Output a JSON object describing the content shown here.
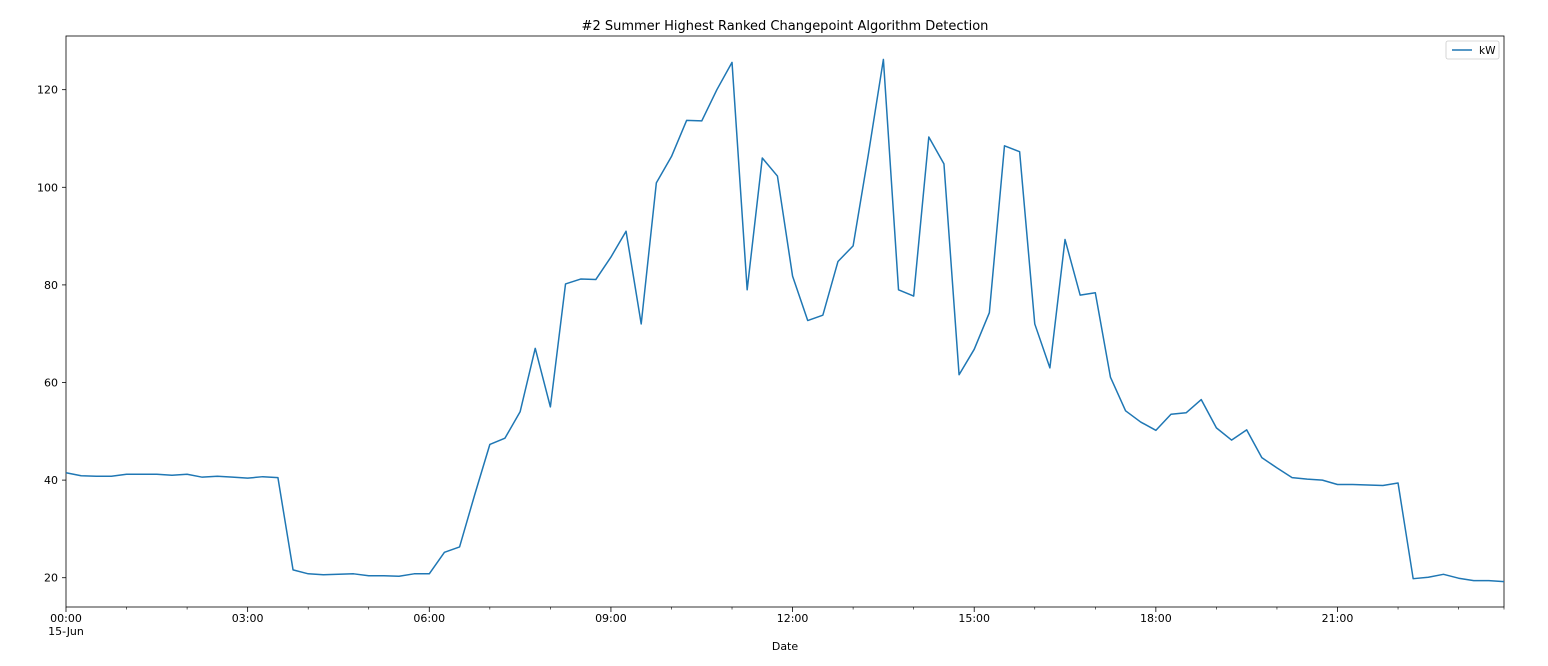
{
  "chart_data": {
    "type": "line",
    "title": "#2 Summer Highest Ranked Changepoint Algorithm Detection",
    "xlabel": "Date",
    "ylabel": "",
    "x_start": "00:00",
    "x_end": "23:45",
    "x_step_minutes": 15,
    "xlim": [
      "00:00",
      "23:45"
    ],
    "ylim": [
      14,
      131
    ],
    "x_ticks": [
      "00:00",
      "03:00",
      "06:00",
      "09:00",
      "12:00",
      "15:00",
      "18:00",
      "21:00"
    ],
    "x_tick_date": "15-Jun",
    "y_ticks": [
      20,
      40,
      60,
      80,
      100,
      120
    ],
    "legend_position": "top-right",
    "grid": false,
    "series": [
      {
        "name": "kW",
        "color": "#1f77b4",
        "values": [
          41.5,
          40.9,
          40.8,
          40.8,
          41.2,
          41.2,
          41.2,
          41.0,
          41.2,
          40.6,
          40.8,
          40.6,
          40.4,
          40.7,
          40.5,
          21.6,
          20.8,
          20.6,
          20.7,
          20.8,
          20.4,
          20.4,
          20.3,
          20.8,
          20.8,
          25.2,
          26.3,
          37.0,
          47.3,
          48.6,
          54.0,
          67.0,
          55.0,
          80.2,
          81.2,
          81.1,
          85.7,
          91.0,
          72.0,
          100.9,
          106.3,
          113.7,
          113.6,
          120.0,
          125.6,
          79.0,
          106.0,
          102.3,
          81.8,
          72.7,
          73.8,
          84.8,
          88.0,
          106.6,
          126.2,
          79.0,
          77.7,
          110.3,
          104.8,
          61.6,
          66.8,
          74.3,
          108.5,
          107.3,
          72.0,
          63.0,
          89.3,
          77.9,
          78.4,
          61.1,
          54.2,
          51.9,
          50.2,
          53.5,
          53.8,
          56.5,
          50.7,
          48.2,
          50.3,
          44.6,
          42.5,
          40.5,
          40.2,
          40.0,
          39.1,
          39.1,
          39.0,
          38.9,
          39.4,
          19.8,
          20.1,
          20.7,
          19.9,
          19.4,
          19.4,
          19.2
        ]
      }
    ]
  }
}
